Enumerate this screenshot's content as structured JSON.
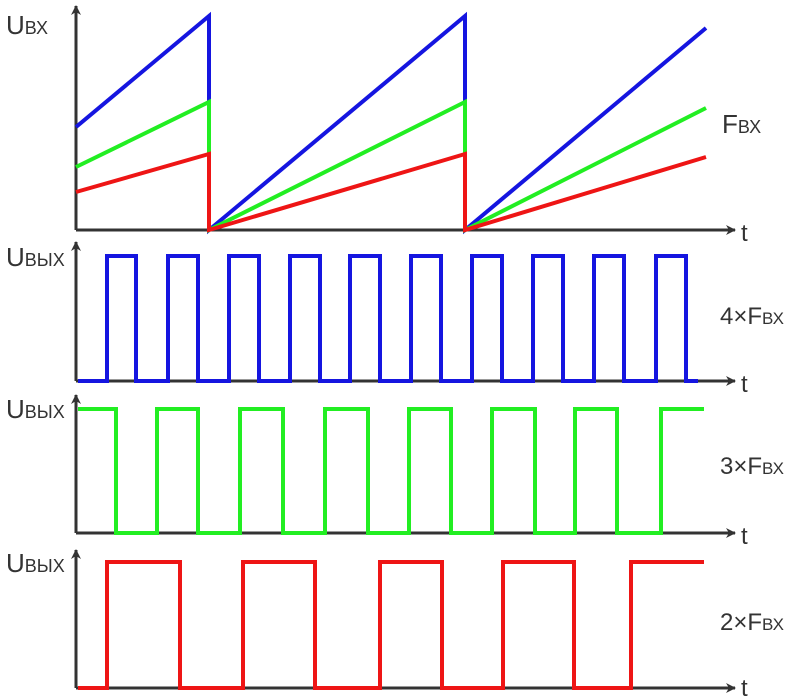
{
  "colors": {
    "axis": "#333333",
    "blue": "#1515e0",
    "green": "#22ee22",
    "red": "#ee1515"
  },
  "ramp_panel": {
    "y_symbol": "U",
    "y_subscript": "ВХ",
    "x_label": "t",
    "curve_label_symbol": "F",
    "curve_label_subscript": "ВХ"
  },
  "pulse_panels": [
    {
      "y_symbol": "U",
      "y_subscript": "ВЫХ",
      "x_label": "t",
      "multiplier": "4×F",
      "multiplier_subscript": "ВХ",
      "color": "blue"
    },
    {
      "y_symbol": "U",
      "y_subscript": "ВЫХ",
      "x_label": "t",
      "multiplier": "3×F",
      "multiplier_subscript": "ВХ",
      "color": "green"
    },
    {
      "y_symbol": "U",
      "y_subscript": "ВЫХ",
      "x_label": "t",
      "multiplier": "2×F",
      "multiplier_subscript": "ВХ",
      "color": "red"
    }
  ]
}
